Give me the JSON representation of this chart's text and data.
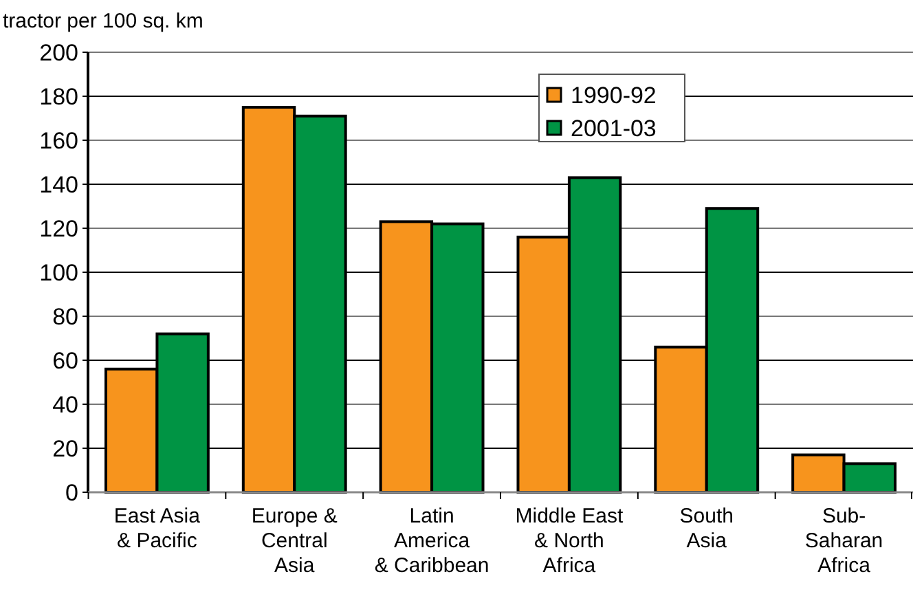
{
  "chart_data": {
    "type": "bar",
    "ylabel": "tractor per 100 sq. km",
    "categories": [
      "East Asia\n& Pacific",
      "Europe &\nCentral\nAsia",
      "Latin\nAmerica\n& Caribbean",
      "Middle East\n& North\nAfrica",
      "South\nAsia",
      "Sub-\nSaharan\nAfrica"
    ],
    "series": [
      {
        "name": "1990-92",
        "color": "#f7941d",
        "values": [
          56,
          175,
          123,
          116,
          66,
          17
        ]
      },
      {
        "name": "2001-03",
        "color": "#009444",
        "values": [
          72,
          171,
          122,
          143,
          129,
          13
        ]
      }
    ],
    "ylim": [
      0,
      200
    ],
    "yticks": [
      0,
      20,
      40,
      60,
      80,
      100,
      120,
      140,
      160,
      180,
      200
    ],
    "grid": "y",
    "legend": "top right"
  }
}
